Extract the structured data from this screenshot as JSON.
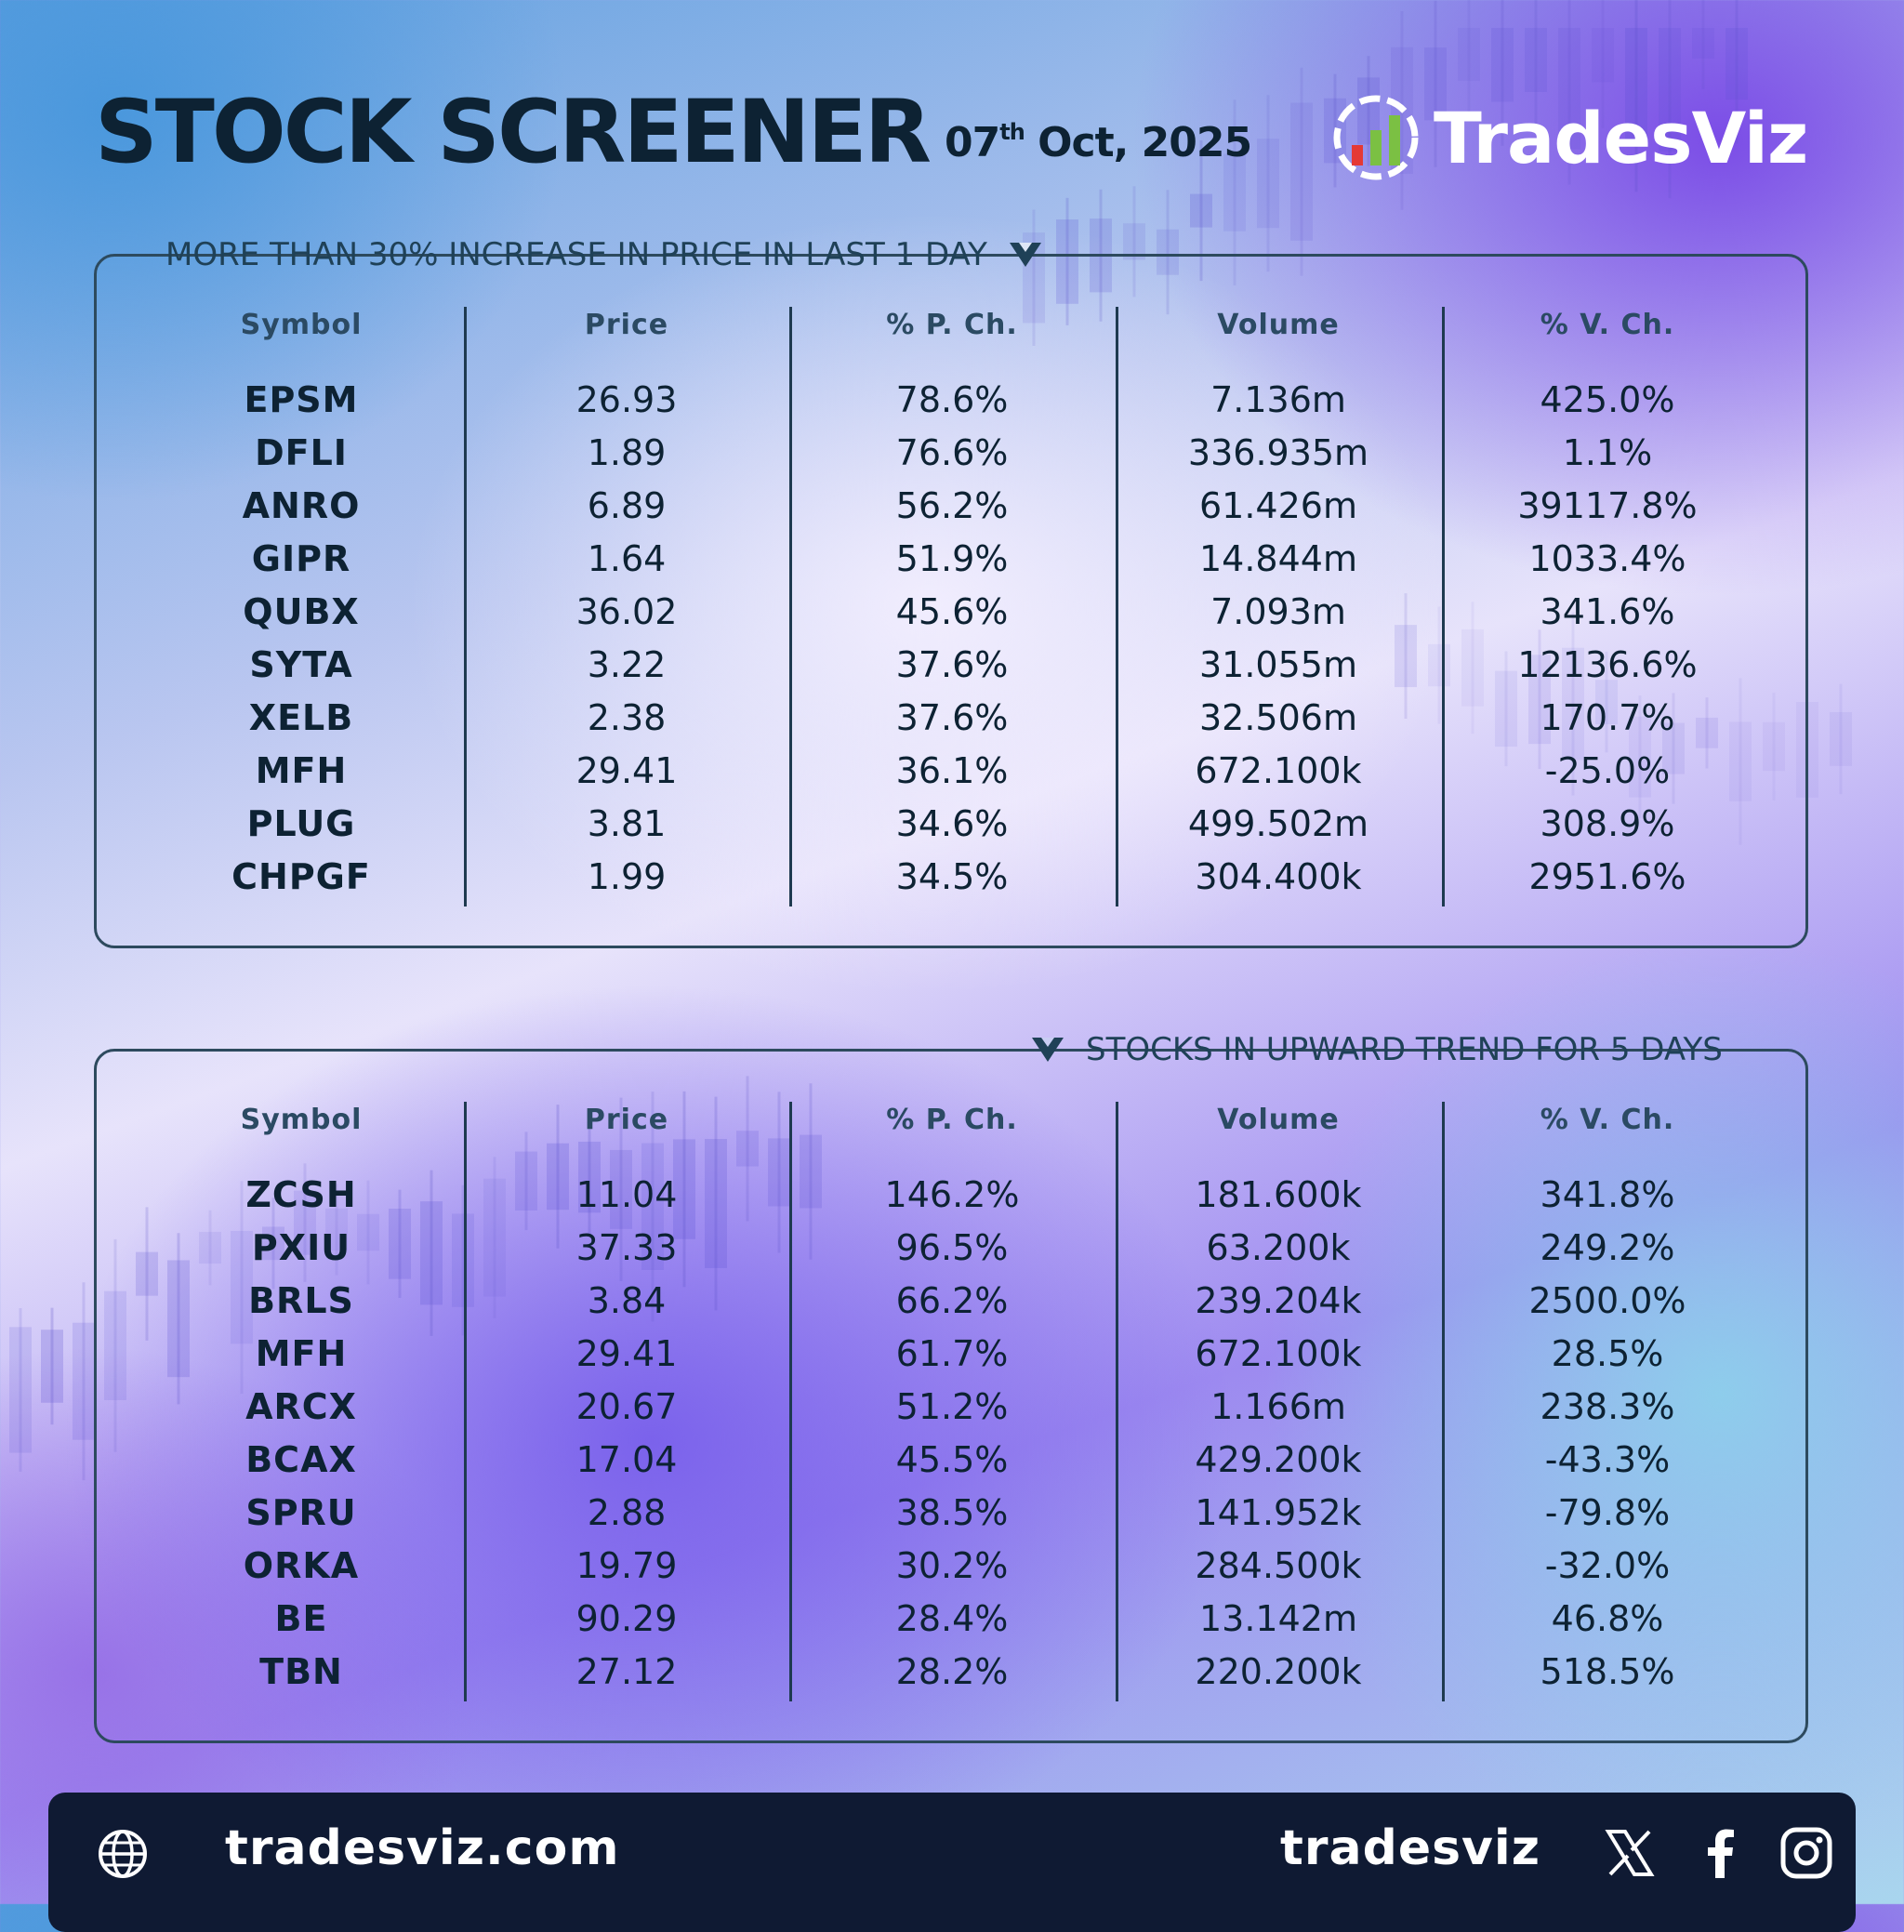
{
  "header": {
    "title": "STOCK SCREENER",
    "date_day": "07",
    "date_suffix": "th",
    "date_rest": " Oct, 2025",
    "brand": "TradesViz"
  },
  "columns": [
    "Symbol",
    "Price",
    "% P. Ch.",
    "Volume",
    "% V. Ch."
  ],
  "panel1": {
    "title": "MORE THAN 30% INCREASE IN PRICE IN LAST 1 DAY",
    "rows": [
      [
        "EPSM",
        "26.93",
        "78.6%",
        "7.136m",
        "425.0%"
      ],
      [
        "DFLI",
        "1.89",
        "76.6%",
        "336.935m",
        "1.1%"
      ],
      [
        "ANRO",
        "6.89",
        "56.2%",
        "61.426m",
        "39117.8%"
      ],
      [
        "GIPR",
        "1.64",
        "51.9%",
        "14.844m",
        "1033.4%"
      ],
      [
        "QUBX",
        "36.02",
        "45.6%",
        "7.093m",
        "341.6%"
      ],
      [
        "SYTA",
        "3.22",
        "37.6%",
        "31.055m",
        "12136.6%"
      ],
      [
        "XELB",
        "2.38",
        "37.6%",
        "32.506m",
        "170.7%"
      ],
      [
        "MFH",
        "29.41",
        "36.1%",
        "672.100k",
        "-25.0%"
      ],
      [
        "PLUG",
        "3.81",
        "34.6%",
        "499.502m",
        "308.9%"
      ],
      [
        "CHPGF",
        "1.99",
        "34.5%",
        "304.400k",
        "2951.6%"
      ]
    ]
  },
  "panel2": {
    "title": "STOCKS IN UPWARD TREND FOR 5 DAYS",
    "rows": [
      [
        "ZCSH",
        "11.04",
        "146.2%",
        "181.600k",
        "341.8%"
      ],
      [
        "PXIU",
        "37.33",
        "96.5%",
        "63.200k",
        "249.2%"
      ],
      [
        "BRLS",
        "3.84",
        "66.2%",
        "239.204k",
        "2500.0%"
      ],
      [
        "MFH",
        "29.41",
        "61.7%",
        "672.100k",
        "28.5%"
      ],
      [
        "ARCX",
        "20.67",
        "51.2%",
        "1.166m",
        "238.3%"
      ],
      [
        "BCAX",
        "17.04",
        "45.5%",
        "429.200k",
        "-43.3%"
      ],
      [
        "SPRU",
        "2.88",
        "38.5%",
        "141.952k",
        "-79.8%"
      ],
      [
        "ORKA",
        "19.79",
        "30.2%",
        "284.500k",
        "-32.0%"
      ],
      [
        "BE",
        "90.29",
        "28.4%",
        "13.142m",
        "46.8%"
      ],
      [
        "TBN",
        "27.12",
        "28.2%",
        "220.200k",
        "518.5%"
      ]
    ]
  },
  "footer": {
    "website": "tradesviz.com",
    "handle": "tradesviz",
    "icons": [
      "globe-icon",
      "x-icon",
      "facebook-icon",
      "instagram-icon"
    ]
  },
  "colors": {
    "text_dark": "#0d2233",
    "panel_border": "#2d4a5e",
    "footer_bg": "#0f1a33",
    "brand_green": "#7bc043",
    "brand_red": "#e53935"
  }
}
